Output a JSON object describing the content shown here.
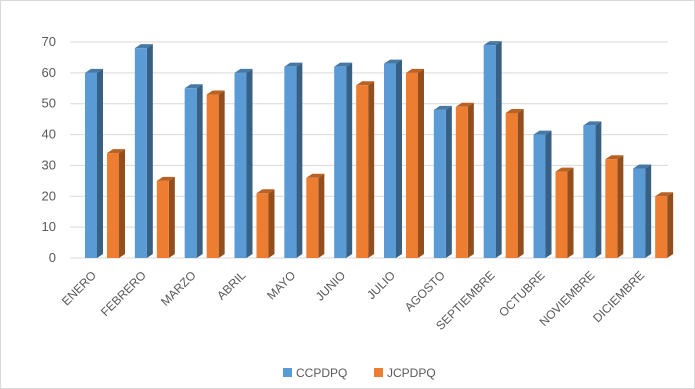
{
  "chart_data": {
    "type": "bar",
    "style": "3d-clustered-column",
    "categories": [
      "ENERO",
      "FEBRERO",
      "MARZO",
      "ABRIL",
      "MAYO",
      "JUNIO",
      "JULIO",
      "AGOSTO",
      "SEPTIEMBRE",
      "OCTUBRE",
      "NOVIEMBRE",
      "DICIEMBRE"
    ],
    "series": [
      {
        "name": "CCPDPQ",
        "color": "#5b9bd5",
        "values": [
          60,
          68,
          55,
          60,
          62,
          62,
          63,
          48,
          69,
          40,
          43,
          29
        ]
      },
      {
        "name": "JCPDPQ",
        "color": "#ed7d31",
        "values": [
          34,
          25,
          53,
          21,
          26,
          56,
          60,
          49,
          47,
          28,
          32,
          20
        ]
      }
    ],
    "ylim": [
      0,
      70
    ],
    "yticks": [
      0,
      10,
      20,
      30,
      40,
      50,
      60,
      70
    ],
    "grid": true,
    "legend_position": "bottom"
  }
}
